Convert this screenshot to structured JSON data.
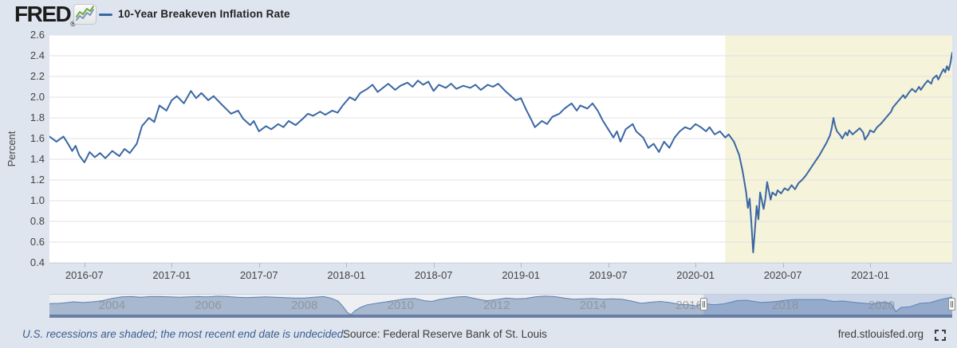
{
  "header": {
    "logo_text": "FRED",
    "registered_mark": "®",
    "legend_label": "10-Year Breakeven Inflation Rate"
  },
  "chart_data": {
    "type": "line",
    "title": "10-Year Breakeven Inflation Rate",
    "xlabel": "",
    "ylabel": "Percent",
    "units": "percent",
    "xlim": [
      2016.3,
      2021.47
    ],
    "ylim": [
      0.4,
      2.6
    ],
    "grid": "horizontal",
    "legend_position": "top-left",
    "y_ticks": [
      0.4,
      0.6,
      0.8,
      1.0,
      1.2,
      1.4,
      1.6,
      1.8,
      2.0,
      2.2,
      2.4,
      2.6
    ],
    "x_ticks": [
      {
        "pos": 2016.5,
        "label": "2016-07"
      },
      {
        "pos": 2017.0,
        "label": "2017-01"
      },
      {
        "pos": 2017.5,
        "label": "2017-07"
      },
      {
        "pos": 2018.0,
        "label": "2018-01"
      },
      {
        "pos": 2018.5,
        "label": "2018-07"
      },
      {
        "pos": 2019.0,
        "label": "2019-01"
      },
      {
        "pos": 2019.5,
        "label": "2019-07"
      },
      {
        "pos": 2020.0,
        "label": "2020-01"
      },
      {
        "pos": 2020.5,
        "label": "2020-07"
      },
      {
        "pos": 2021.0,
        "label": "2021-01"
      }
    ],
    "recession_band": {
      "start": 2020.17,
      "end": 2021.47,
      "note": "U.S. recession, end date undecided"
    },
    "points": [
      [
        2016.3,
        1.62
      ],
      [
        2016.34,
        1.57
      ],
      [
        2016.38,
        1.62
      ],
      [
        2016.41,
        1.54
      ],
      [
        2016.43,
        1.48
      ],
      [
        2016.45,
        1.53
      ],
      [
        2016.47,
        1.44
      ],
      [
        2016.5,
        1.37
      ],
      [
        2016.53,
        1.47
      ],
      [
        2016.56,
        1.42
      ],
      [
        2016.59,
        1.46
      ],
      [
        2016.62,
        1.41
      ],
      [
        2016.66,
        1.48
      ],
      [
        2016.7,
        1.43
      ],
      [
        2016.73,
        1.5
      ],
      [
        2016.76,
        1.46
      ],
      [
        2016.8,
        1.55
      ],
      [
        2016.83,
        1.72
      ],
      [
        2016.87,
        1.8
      ],
      [
        2016.9,
        1.76
      ],
      [
        2016.93,
        1.92
      ],
      [
        2016.97,
        1.87
      ],
      [
        2017.0,
        1.97
      ],
      [
        2017.03,
        2.01
      ],
      [
        2017.07,
        1.94
      ],
      [
        2017.11,
        2.06
      ],
      [
        2017.14,
        1.99
      ],
      [
        2017.17,
        2.04
      ],
      [
        2017.21,
        1.97
      ],
      [
        2017.24,
        2.01
      ],
      [
        2017.28,
        1.94
      ],
      [
        2017.31,
        1.89
      ],
      [
        2017.34,
        1.84
      ],
      [
        2017.38,
        1.87
      ],
      [
        2017.41,
        1.79
      ],
      [
        2017.45,
        1.73
      ],
      [
        2017.47,
        1.77
      ],
      [
        2017.5,
        1.67
      ],
      [
        2017.54,
        1.72
      ],
      [
        2017.57,
        1.69
      ],
      [
        2017.61,
        1.74
      ],
      [
        2017.64,
        1.71
      ],
      [
        2017.67,
        1.77
      ],
      [
        2017.71,
        1.73
      ],
      [
        2017.75,
        1.79
      ],
      [
        2017.78,
        1.84
      ],
      [
        2017.81,
        1.82
      ],
      [
        2017.85,
        1.86
      ],
      [
        2017.88,
        1.83
      ],
      [
        2017.92,
        1.87
      ],
      [
        2017.95,
        1.85
      ],
      [
        2017.98,
        1.92
      ],
      [
        2018.02,
        2.0
      ],
      [
        2018.05,
        1.97
      ],
      [
        2018.08,
        2.04
      ],
      [
        2018.12,
        2.08
      ],
      [
        2018.15,
        2.12
      ],
      [
        2018.18,
        2.05
      ],
      [
        2018.21,
        2.09
      ],
      [
        2018.24,
        2.13
      ],
      [
        2018.28,
        2.07
      ],
      [
        2018.31,
        2.11
      ],
      [
        2018.35,
        2.14
      ],
      [
        2018.38,
        2.1
      ],
      [
        2018.41,
        2.16
      ],
      [
        2018.44,
        2.12
      ],
      [
        2018.47,
        2.15
      ],
      [
        2018.5,
        2.06
      ],
      [
        2018.53,
        2.12
      ],
      [
        2018.57,
        2.09
      ],
      [
        2018.6,
        2.13
      ],
      [
        2018.63,
        2.08
      ],
      [
        2018.67,
        2.11
      ],
      [
        2018.71,
        2.09
      ],
      [
        2018.74,
        2.12
      ],
      [
        2018.77,
        2.07
      ],
      [
        2018.81,
        2.12
      ],
      [
        2018.84,
        2.1
      ],
      [
        2018.87,
        2.13
      ],
      [
        2018.91,
        2.06
      ],
      [
        2018.93,
        2.03
      ],
      [
        2018.97,
        1.97
      ],
      [
        2019.0,
        1.99
      ],
      [
        2019.03,
        1.88
      ],
      [
        2019.06,
        1.78
      ],
      [
        2019.08,
        1.71
      ],
      [
        2019.12,
        1.77
      ],
      [
        2019.15,
        1.74
      ],
      [
        2019.18,
        1.81
      ],
      [
        2019.22,
        1.84
      ],
      [
        2019.25,
        1.89
      ],
      [
        2019.29,
        1.94
      ],
      [
        2019.32,
        1.87
      ],
      [
        2019.34,
        1.92
      ],
      [
        2019.38,
        1.89
      ],
      [
        2019.41,
        1.94
      ],
      [
        2019.44,
        1.87
      ],
      [
        2019.47,
        1.77
      ],
      [
        2019.5,
        1.69
      ],
      [
        2019.53,
        1.61
      ],
      [
        2019.55,
        1.67
      ],
      [
        2019.57,
        1.57
      ],
      [
        2019.6,
        1.69
      ],
      [
        2019.64,
        1.74
      ],
      [
        2019.66,
        1.67
      ],
      [
        2019.7,
        1.61
      ],
      [
        2019.73,
        1.51
      ],
      [
        2019.76,
        1.55
      ],
      [
        2019.79,
        1.47
      ],
      [
        2019.82,
        1.57
      ],
      [
        2019.85,
        1.51
      ],
      [
        2019.88,
        1.61
      ],
      [
        2019.91,
        1.67
      ],
      [
        2019.94,
        1.71
      ],
      [
        2019.97,
        1.69
      ],
      [
        2020.0,
        1.74
      ],
      [
        2020.03,
        1.71
      ],
      [
        2020.06,
        1.67
      ],
      [
        2020.08,
        1.71
      ],
      [
        2020.11,
        1.64
      ],
      [
        2020.14,
        1.67
      ],
      [
        2020.17,
        1.61
      ],
      [
        2020.19,
        1.64
      ],
      [
        2020.22,
        1.57
      ],
      [
        2020.25,
        1.44
      ],
      [
        2020.27,
        1.28
      ],
      [
        2020.29,
        1.08
      ],
      [
        2020.3,
        0.93
      ],
      [
        2020.31,
        1.02
      ],
      [
        2020.32,
        0.78
      ],
      [
        2020.33,
        0.5
      ],
      [
        2020.34,
        0.72
      ],
      [
        2020.35,
        0.95
      ],
      [
        2020.36,
        0.82
      ],
      [
        2020.37,
        1.08
      ],
      [
        2020.39,
        0.92
      ],
      [
        2020.4,
        1.02
      ],
      [
        2020.41,
        1.18
      ],
      [
        2020.43,
        1.01
      ],
      [
        2020.44,
        1.08
      ],
      [
        2020.46,
        1.05
      ],
      [
        2020.47,
        1.1
      ],
      [
        2020.49,
        1.07
      ],
      [
        2020.51,
        1.12
      ],
      [
        2020.53,
        1.1
      ],
      [
        2020.55,
        1.15
      ],
      [
        2020.57,
        1.11
      ],
      [
        2020.59,
        1.17
      ],
      [
        2020.61,
        1.2
      ],
      [
        2020.63,
        1.24
      ],
      [
        2020.65,
        1.29
      ],
      [
        2020.67,
        1.34
      ],
      [
        2020.69,
        1.39
      ],
      [
        2020.71,
        1.44
      ],
      [
        2020.73,
        1.5
      ],
      [
        2020.75,
        1.56
      ],
      [
        2020.77,
        1.63
      ],
      [
        2020.78,
        1.7
      ],
      [
        2020.79,
        1.8
      ],
      [
        2020.8,
        1.72
      ],
      [
        2020.81,
        1.67
      ],
      [
        2020.83,
        1.63
      ],
      [
        2020.84,
        1.6
      ],
      [
        2020.86,
        1.66
      ],
      [
        2020.87,
        1.63
      ],
      [
        2020.88,
        1.68
      ],
      [
        2020.9,
        1.64
      ],
      [
        2020.92,
        1.67
      ],
      [
        2020.94,
        1.7
      ],
      [
        2020.96,
        1.66
      ],
      [
        2020.97,
        1.59
      ],
      [
        2020.99,
        1.64
      ],
      [
        2021.0,
        1.68
      ],
      [
        2021.02,
        1.66
      ],
      [
        2021.04,
        1.71
      ],
      [
        2021.06,
        1.74
      ],
      [
        2021.08,
        1.78
      ],
      [
        2021.1,
        1.82
      ],
      [
        2021.12,
        1.86
      ],
      [
        2021.13,
        1.9
      ],
      [
        2021.15,
        1.94
      ],
      [
        2021.17,
        1.98
      ],
      [
        2021.19,
        2.02
      ],
      [
        2021.2,
        1.99
      ],
      [
        2021.22,
        2.04
      ],
      [
        2021.24,
        2.08
      ],
      [
        2021.26,
        2.05
      ],
      [
        2021.28,
        2.1
      ],
      [
        2021.29,
        2.07
      ],
      [
        2021.31,
        2.12
      ],
      [
        2021.33,
        2.16
      ],
      [
        2021.35,
        2.13
      ],
      [
        2021.36,
        2.18
      ],
      [
        2021.38,
        2.21
      ],
      [
        2021.39,
        2.17
      ],
      [
        2021.41,
        2.24
      ],
      [
        2021.42,
        2.27
      ],
      [
        2021.43,
        2.24
      ],
      [
        2021.44,
        2.3
      ],
      [
        2021.45,
        2.26
      ],
      [
        2021.46,
        2.33
      ],
      [
        2021.465,
        2.38
      ],
      [
        2021.47,
        2.43
      ]
    ]
  },
  "navigator": {
    "xlim": [
      2002.7,
      2021.47
    ],
    "ylim": [
      0,
      2.75
    ],
    "year_labels": [
      2004,
      2006,
      2008,
      2010,
      2012,
      2014,
      2016,
      2018,
      2020
    ],
    "selection": [
      2016.3,
      2021.47
    ],
    "points": [
      [
        2002.7,
        1.55
      ],
      [
        2002.9,
        1.6
      ],
      [
        2003.0,
        1.65
      ],
      [
        2003.2,
        1.8
      ],
      [
        2003.4,
        1.7
      ],
      [
        2003.6,
        1.8
      ],
      [
        2003.8,
        1.95
      ],
      [
        2004.0,
        2.25
      ],
      [
        2004.2,
        2.45
      ],
      [
        2004.4,
        2.5
      ],
      [
        2004.6,
        2.4
      ],
      [
        2004.8,
        2.5
      ],
      [
        2005.0,
        2.5
      ],
      [
        2005.2,
        2.45
      ],
      [
        2005.4,
        2.4
      ],
      [
        2005.6,
        2.45
      ],
      [
        2005.8,
        2.5
      ],
      [
        2006.0,
        2.45
      ],
      [
        2006.2,
        2.55
      ],
      [
        2006.4,
        2.5
      ],
      [
        2006.6,
        2.4
      ],
      [
        2006.8,
        2.35
      ],
      [
        2007.0,
        2.4
      ],
      [
        2007.2,
        2.45
      ],
      [
        2007.4,
        2.4
      ],
      [
        2007.6,
        2.35
      ],
      [
        2007.8,
        2.3
      ],
      [
        2008.0,
        2.3
      ],
      [
        2008.2,
        2.4
      ],
      [
        2008.4,
        2.5
      ],
      [
        2008.55,
        2.3
      ],
      [
        2008.7,
        1.9
      ],
      [
        2008.8,
        1.2
      ],
      [
        2008.9,
        0.35
      ],
      [
        2008.97,
        0.1
      ],
      [
        2009.05,
        0.6
      ],
      [
        2009.15,
        1.0
      ],
      [
        2009.3,
        1.4
      ],
      [
        2009.5,
        1.6
      ],
      [
        2009.7,
        1.8
      ],
      [
        2009.9,
        2.0
      ],
      [
        2010.1,
        2.2
      ],
      [
        2010.3,
        2.25
      ],
      [
        2010.5,
        1.95
      ],
      [
        2010.65,
        1.85
      ],
      [
        2010.8,
        2.1
      ],
      [
        2011.0,
        2.3
      ],
      [
        2011.2,
        2.45
      ],
      [
        2011.35,
        2.5
      ],
      [
        2011.5,
        2.3
      ],
      [
        2011.65,
        2.1
      ],
      [
        2011.8,
        1.95
      ],
      [
        2012.0,
        2.1
      ],
      [
        2012.2,
        2.3
      ],
      [
        2012.4,
        2.2
      ],
      [
        2012.6,
        2.25
      ],
      [
        2012.8,
        2.45
      ],
      [
        2013.0,
        2.55
      ],
      [
        2013.2,
        2.5
      ],
      [
        2013.4,
        2.3
      ],
      [
        2013.6,
        2.15
      ],
      [
        2013.8,
        2.2
      ],
      [
        2014.0,
        2.25
      ],
      [
        2014.2,
        2.15
      ],
      [
        2014.4,
        2.2
      ],
      [
        2014.6,
        2.15
      ],
      [
        2014.8,
        1.9
      ],
      [
        2015.0,
        1.6
      ],
      [
        2015.2,
        1.75
      ],
      [
        2015.4,
        1.85
      ],
      [
        2015.6,
        1.7
      ],
      [
        2015.8,
        1.45
      ],
      [
        2016.0,
        1.4
      ],
      [
        2016.15,
        1.25
      ],
      [
        2016.3,
        1.6
      ],
      [
        2016.5,
        1.4
      ],
      [
        2016.7,
        1.5
      ],
      [
        2016.9,
        1.8
      ],
      [
        2017.0,
        1.97
      ],
      [
        2017.2,
        2.0
      ],
      [
        2017.5,
        1.7
      ],
      [
        2017.8,
        1.84
      ],
      [
        2018.0,
        2.0
      ],
      [
        2018.2,
        2.1
      ],
      [
        2018.5,
        2.1
      ],
      [
        2018.8,
        2.1
      ],
      [
        2019.0,
        1.85
      ],
      [
        2019.2,
        1.9
      ],
      [
        2019.5,
        1.68
      ],
      [
        2019.8,
        1.5
      ],
      [
        2020.0,
        1.72
      ],
      [
        2020.2,
        1.6
      ],
      [
        2020.3,
        0.5
      ],
      [
        2020.4,
        1.05
      ],
      [
        2020.6,
        1.15
      ],
      [
        2020.8,
        1.6
      ],
      [
        2021.0,
        1.68
      ],
      [
        2021.2,
        2.05
      ],
      [
        2021.47,
        2.43
      ]
    ]
  },
  "footer": {
    "recession_note": "U.S. recessions are shaded; the most recent end date is undecided.",
    "source": "Source: Federal Reserve Bank of St. Louis",
    "site": "fred.stlouisfed.org"
  },
  "colors": {
    "page_bg": "#dee5ee",
    "plot_bg": "#ffffff",
    "grid": "#e2e2e2",
    "recession_band": "#f5f3da",
    "series_line": "#3a67a3",
    "axis_text": "#444444",
    "nav_bg": "#edeff3",
    "nav_fill": "#a7b8cf",
    "nav_line": "#5e81b0",
    "nav_mask": "rgba(97,130,196,0.25)",
    "nav_bar": "#6a7ea4",
    "logo_green": "#6fa83c",
    "logo_blue": "#7b96b8"
  }
}
